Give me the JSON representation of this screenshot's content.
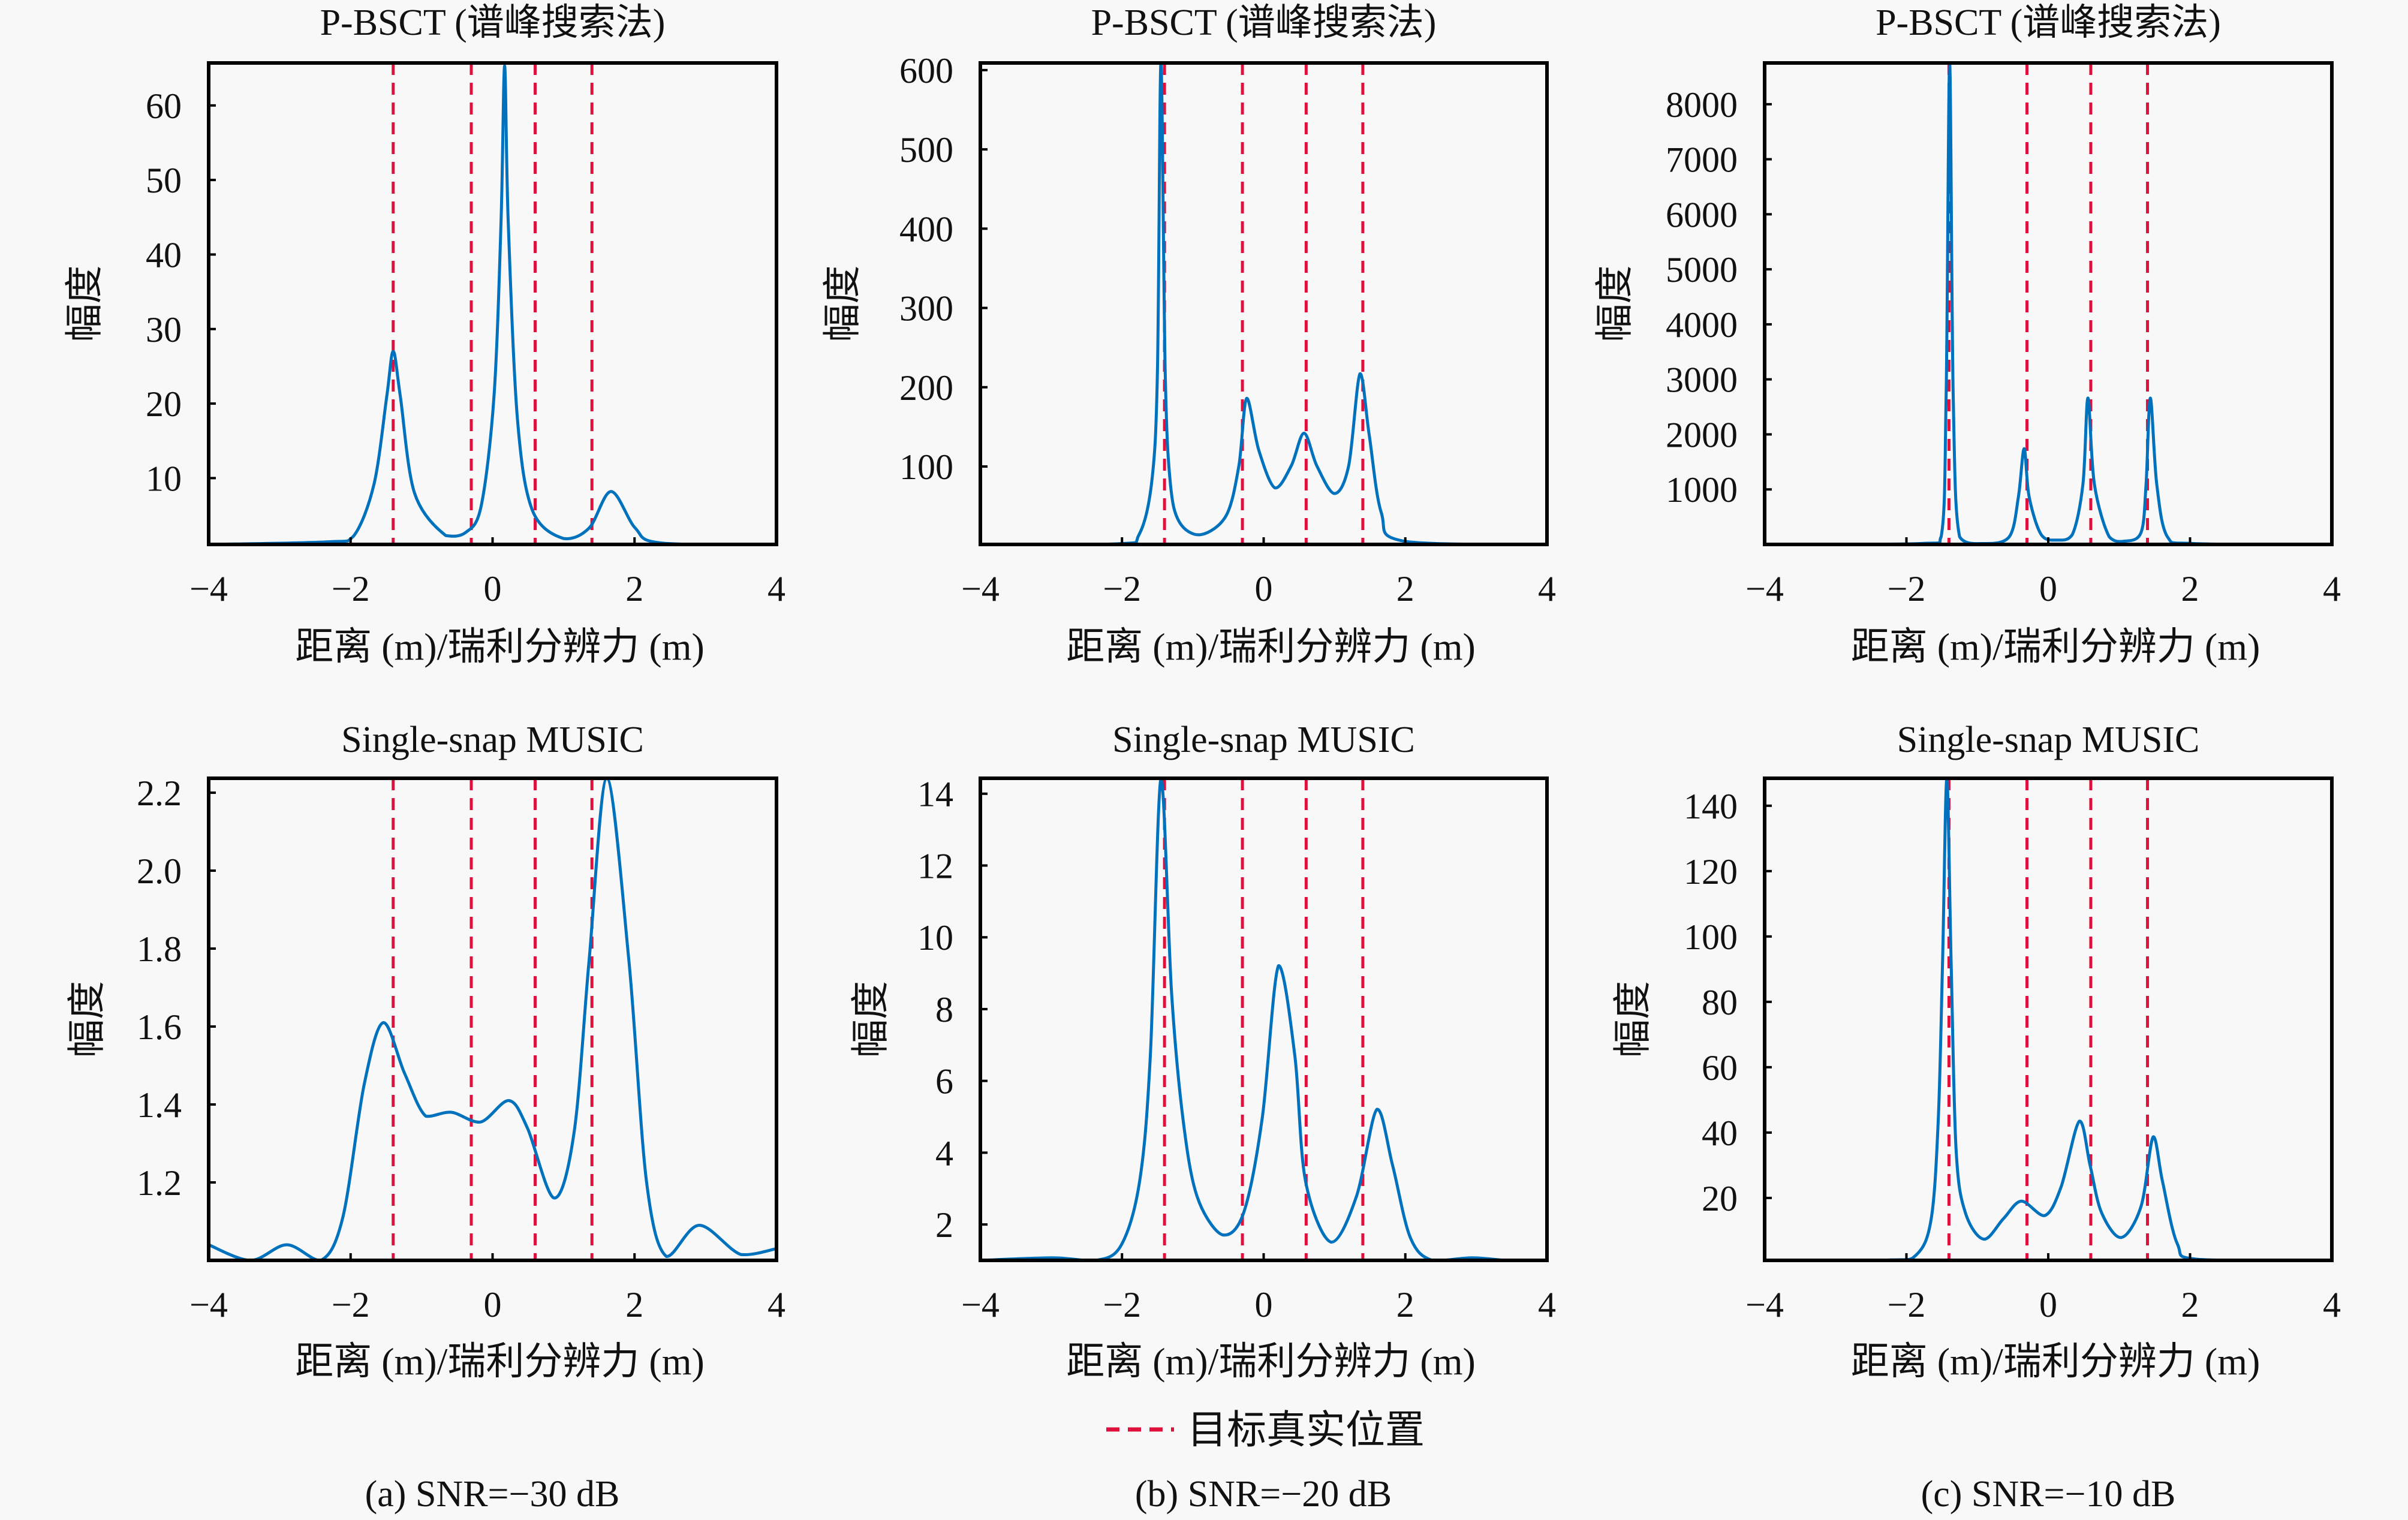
{
  "legend": {
    "label": "目标真实位置",
    "color": "#E0103C"
  },
  "captions": [
    "(a) SNR=−30 dB",
    "(b) SNR=−20 dB",
    "(c) SNR=−10 dB"
  ],
  "colors": {
    "curve": "#0072BD",
    "true_position": "#E0103C",
    "axes": "#000000"
  },
  "chart_data": [
    {
      "type": "line",
      "row": 0,
      "col": 0,
      "title": "P-BSCT (谱峰搜索法)",
      "xlabel": "距离 (m)/瑞利分辨力 (m)",
      "ylabel": "幅度",
      "xlim": [
        -4,
        4
      ],
      "ylim": [
        1.1,
        65.7
      ],
      "xticks": [
        -4,
        -2,
        0,
        2,
        4
      ],
      "xtick_labels": [
        "−4",
        "−2",
        "0",
        "2",
        "4"
      ],
      "yticks": [
        10,
        20,
        30,
        40,
        50,
        60
      ],
      "ytick_labels": [
        "10",
        "20",
        "30",
        "40",
        "50",
        "60"
      ],
      "true_positions": [
        -1.4,
        -0.3,
        0.6,
        1.4
      ],
      "series": [
        {
          "name": "spectrum",
          "x": [
            -4,
            -2.32,
            -1.96,
            -1.67,
            -1.49,
            -1.4,
            -1.3,
            -1.1,
            -0.66,
            -0.38,
            -0.16,
            0.02,
            0.12,
            0.17,
            0.22,
            0.35,
            0.56,
            1.0,
            1.36,
            1.67,
            2.01,
            2.37,
            4
          ],
          "y": [
            1.1,
            1.45,
            2.2,
            9.2,
            21,
            27,
            21,
            8,
            2.3,
            2.7,
            6.3,
            21,
            44.6,
            65.3,
            44.6,
            18,
            5.7,
            1.9,
            3.3,
            8.2,
            3.3,
            1.3,
            1.1
          ]
        }
      ]
    },
    {
      "type": "line",
      "row": 0,
      "col": 1,
      "title": "P-BSCT (谱峰搜索法)",
      "xlabel": "距离 (m)/瑞利分辨力 (m)",
      "ylabel": "幅度",
      "xlim": [
        -4,
        4
      ],
      "ylim": [
        1.7,
        609
      ],
      "xticks": [
        -4,
        -2,
        0,
        2,
        4
      ],
      "xtick_labels": [
        "−4",
        "−2",
        "0",
        "2",
        "4"
      ],
      "yticks": [
        100,
        200,
        300,
        400,
        500,
        600
      ],
      "ytick_labels": [
        "100",
        "200",
        "300",
        "400",
        "500",
        "600"
      ],
      "true_positions": [
        -1.4,
        -0.3,
        0.6,
        1.4
      ],
      "series": [
        {
          "name": "spectrum",
          "x": [
            -4,
            -2.06,
            -1.76,
            -1.58,
            -1.5,
            -1.45,
            -1.39,
            -1.32,
            -1.19,
            -0.89,
            -0.53,
            -0.35,
            -0.24,
            -0.07,
            0.16,
            0.39,
            0.57,
            0.75,
            1.0,
            1.2,
            1.36,
            1.49,
            1.66,
            1.97,
            4
          ],
          "y": [
            1.7,
            2.5,
            14,
            81,
            219,
            609,
            219,
            81,
            30,
            14,
            38,
            101,
            186,
            121,
            73,
            101,
            142,
            101,
            66,
            101,
            217,
            140,
            42,
            6,
            1.7
          ]
        }
      ]
    },
    {
      "type": "line",
      "row": 0,
      "col": 2,
      "title": "P-BSCT (谱峰搜索法)",
      "xlabel": "距离 (m)/瑞利分辨力 (m)",
      "ylabel": "幅度",
      "xlim": [
        -4,
        4
      ],
      "ylim": [
        0,
        8750
      ],
      "xticks": [
        -4,
        -2,
        0,
        2,
        4
      ],
      "xtick_labels": [
        "−4",
        "−2",
        "0",
        "2",
        "4"
      ],
      "yticks": [
        1000,
        2000,
        3000,
        4000,
        5000,
        6000,
        7000,
        8000
      ],
      "ytick_labels": [
        "1000",
        "2000",
        "3000",
        "4000",
        "5000",
        "6000",
        "7000",
        "8000"
      ],
      "true_positions": [
        -1.4,
        -0.3,
        0.6,
        1.4
      ],
      "series": [
        {
          "name": "spectrum",
          "x": [
            -4,
            -1.81,
            -1.51,
            -1.44,
            -1.39,
            -1.34,
            -1.25,
            -0.92,
            -0.55,
            -0.42,
            -0.34,
            -0.27,
            -0.1,
            0.12,
            0.34,
            0.49,
            0.56,
            0.65,
            0.86,
            1.08,
            1.31,
            1.38,
            1.44,
            1.53,
            1.68,
            2.05,
            4
          ],
          "y": [
            0,
            16,
            140,
            2700,
            8750,
            2700,
            140,
            16,
            140,
            870,
            1740,
            870,
            180,
            80,
            180,
            1100,
            2660,
            1100,
            140,
            60,
            220,
            1100,
            2660,
            1100,
            140,
            16,
            0
          ]
        }
      ]
    },
    {
      "type": "line",
      "row": 1,
      "col": 0,
      "title": "Single-snap MUSIC",
      "xlabel": "距离 (m)/瑞利分辨力 (m)",
      "ylabel": "幅度",
      "xlim": [
        -4,
        4
      ],
      "ylim": [
        1.0,
        2.237
      ],
      "xticks": [
        -4,
        -2,
        0,
        2,
        4
      ],
      "xtick_labels": [
        "−4",
        "−2",
        "0",
        "2",
        "4"
      ],
      "yticks": [
        1.2,
        1.4,
        1.6,
        1.8,
        2.0,
        2.2
      ],
      "ytick_labels": [
        "1.2",
        "1.4",
        "1.6",
        "1.8",
        "2.0",
        "2.2"
      ],
      "true_positions": [
        -1.4,
        -0.3,
        0.6,
        1.4
      ],
      "series": [
        {
          "name": "spectrum",
          "x": [
            -4,
            -3.41,
            -2.9,
            -2.42,
            -2.11,
            -1.81,
            -1.54,
            -1.24,
            -0.94,
            -0.58,
            -0.17,
            0.23,
            0.49,
            0.87,
            1.15,
            1.36,
            1.61,
            1.92,
            2.17,
            2.45,
            2.91,
            3.5,
            4
          ],
          "y": [
            1.04,
            1.0,
            1.04,
            1.0,
            1.11,
            1.45,
            1.61,
            1.48,
            1.37,
            1.38,
            1.355,
            1.41,
            1.34,
            1.16,
            1.33,
            1.77,
            2.237,
            1.77,
            1.2,
            1.01,
            1.09,
            1.015,
            1.03
          ]
        }
      ]
    },
    {
      "type": "line",
      "row": 1,
      "col": 1,
      "title": "Single-snap MUSIC",
      "xlabel": "距离 (m)/瑞利分辨力 (m)",
      "ylabel": "幅度",
      "xlim": [
        -4,
        4
      ],
      "ylim": [
        1.0,
        14.43
      ],
      "xticks": [
        -4,
        -2,
        0,
        2,
        4
      ],
      "xtick_labels": [
        "−4",
        "−2",
        "0",
        "2",
        "4"
      ],
      "yticks": [
        2,
        4,
        6,
        8,
        10,
        12,
        14
      ],
      "ytick_labels": [
        "2",
        "4",
        "6",
        "8",
        "10",
        "12",
        "14"
      ],
      "true_positions": [
        -1.4,
        -0.3,
        0.6,
        1.4
      ],
      "series": [
        {
          "name": "spectrum",
          "x": [
            -4,
            -2.98,
            -2.37,
            -2.01,
            -1.75,
            -1.6,
            -1.45,
            -1.3,
            -1.14,
            -0.94,
            -0.58,
            -0.28,
            -0.02,
            0.21,
            0.44,
            0.59,
            0.95,
            1.31,
            1.6,
            1.82,
            2.07,
            2.38,
            2.94,
            3.45,
            4
          ],
          "y": [
            1.0,
            1.07,
            1.0,
            1.43,
            3.22,
            6.7,
            14.43,
            8.46,
            4.96,
            2.78,
            1.71,
            2.34,
            4.96,
            9.21,
            6.7,
            3.22,
            1.51,
            2.78,
            5.21,
            3.65,
            1.64,
            1.0,
            1.07,
            1.0,
            1.0
          ]
        }
      ]
    },
    {
      "type": "line",
      "row": 1,
      "col": 2,
      "title": "Single-snap MUSIC",
      "xlabel": "距离 (m)/瑞利分辨力 (m)",
      "ylabel": "幅度",
      "xlim": [
        -4,
        4
      ],
      "ylim": [
        0.9,
        148.4
      ],
      "xticks": [
        -4,
        -2,
        0,
        2,
        4
      ],
      "xtick_labels": [
        "−4",
        "−2",
        "0",
        "2",
        "4"
      ],
      "yticks": [
        20,
        40,
        60,
        80,
        100,
        120,
        140
      ],
      "ytick_labels": [
        "20",
        "40",
        "60",
        "80",
        "100",
        "120",
        "140"
      ],
      "true_positions": [
        -1.4,
        -0.3,
        0.6,
        1.4
      ],
      "series": [
        {
          "name": "spectrum",
          "x": [
            -4,
            -2.27,
            -1.86,
            -1.65,
            -1.55,
            -1.49,
            -1.43,
            -1.37,
            -1.3,
            -1.17,
            -0.91,
            -0.63,
            -0.38,
            -0.05,
            0.18,
            0.44,
            0.59,
            0.75,
            1.03,
            1.31,
            1.48,
            1.61,
            1.82,
            2.12,
            4
          ],
          "y": [
            1.0,
            1.0,
            2.6,
            13.7,
            44.4,
            92.5,
            148.4,
            92.5,
            34.8,
            15.6,
            7.4,
            13.7,
            19.0,
            14.6,
            23.3,
            43.5,
            30.0,
            15.6,
            7.9,
            17.5,
            38.7,
            25.2,
            6.0,
            1.2,
            1.0
          ]
        }
      ]
    }
  ]
}
